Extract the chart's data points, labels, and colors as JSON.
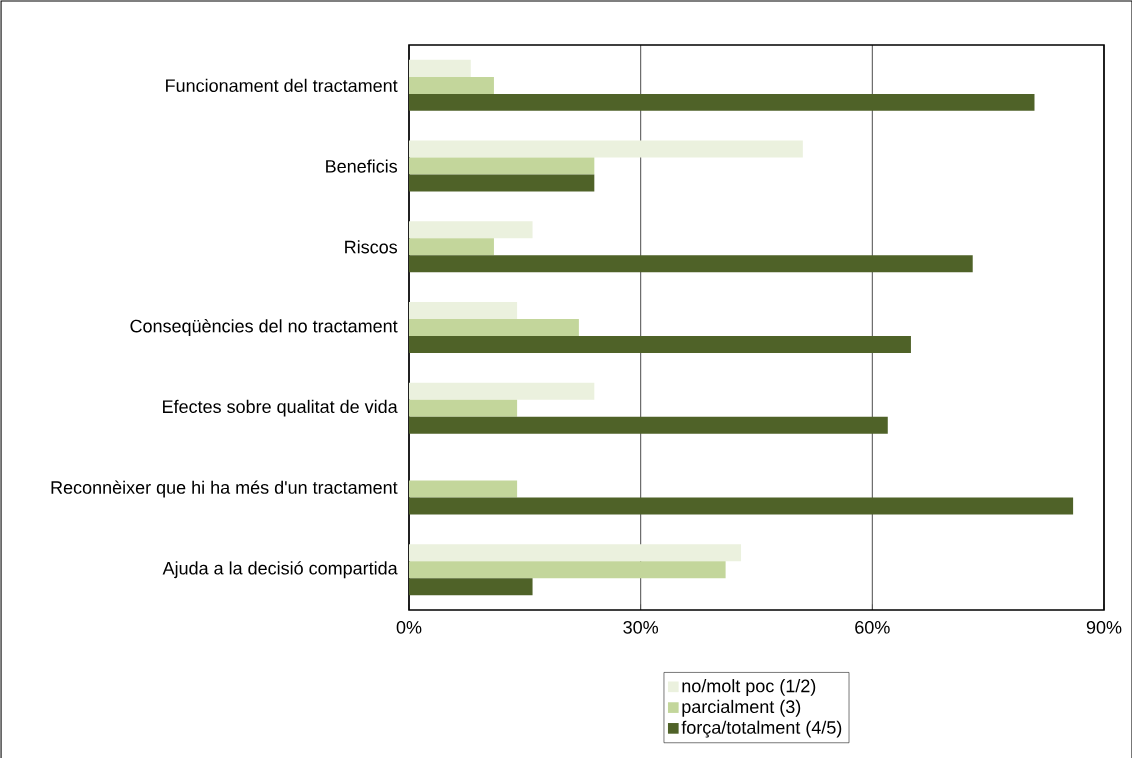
{
  "chart_data": {
    "type": "bar",
    "orientation": "horizontal",
    "categories": [
      "Funcionament del tractament",
      "Beneficis",
      "Riscos",
      "Conseqüències del no tractament",
      "Efectes sobre qualitat de vida",
      "Reconnèixer que hi ha més d'un tractament",
      "Ajuda a la decisió compartida"
    ],
    "series": [
      {
        "name": "no/molt poc (1/2)",
        "color": "#ebf1de",
        "values": [
          8,
          51,
          16,
          14,
          24,
          0,
          43
        ]
      },
      {
        "name": "parcialment (3)",
        "color": "#c3d69b",
        "values": [
          11,
          24,
          11,
          22,
          14,
          14,
          41
        ]
      },
      {
        "name": "força/totalment (4/5)",
        "color": "#4f6228",
        "values": [
          81,
          24,
          73,
          65,
          62,
          86,
          16
        ]
      }
    ],
    "xlim": [
      0,
      90
    ],
    "xticks": [
      {
        "value": 0,
        "label": "0%"
      },
      {
        "value": 30,
        "label": "30%"
      },
      {
        "value": 60,
        "label": "60%"
      },
      {
        "value": 90,
        "label": "90%"
      }
    ],
    "grid": "x",
    "legend": "bottom"
  }
}
